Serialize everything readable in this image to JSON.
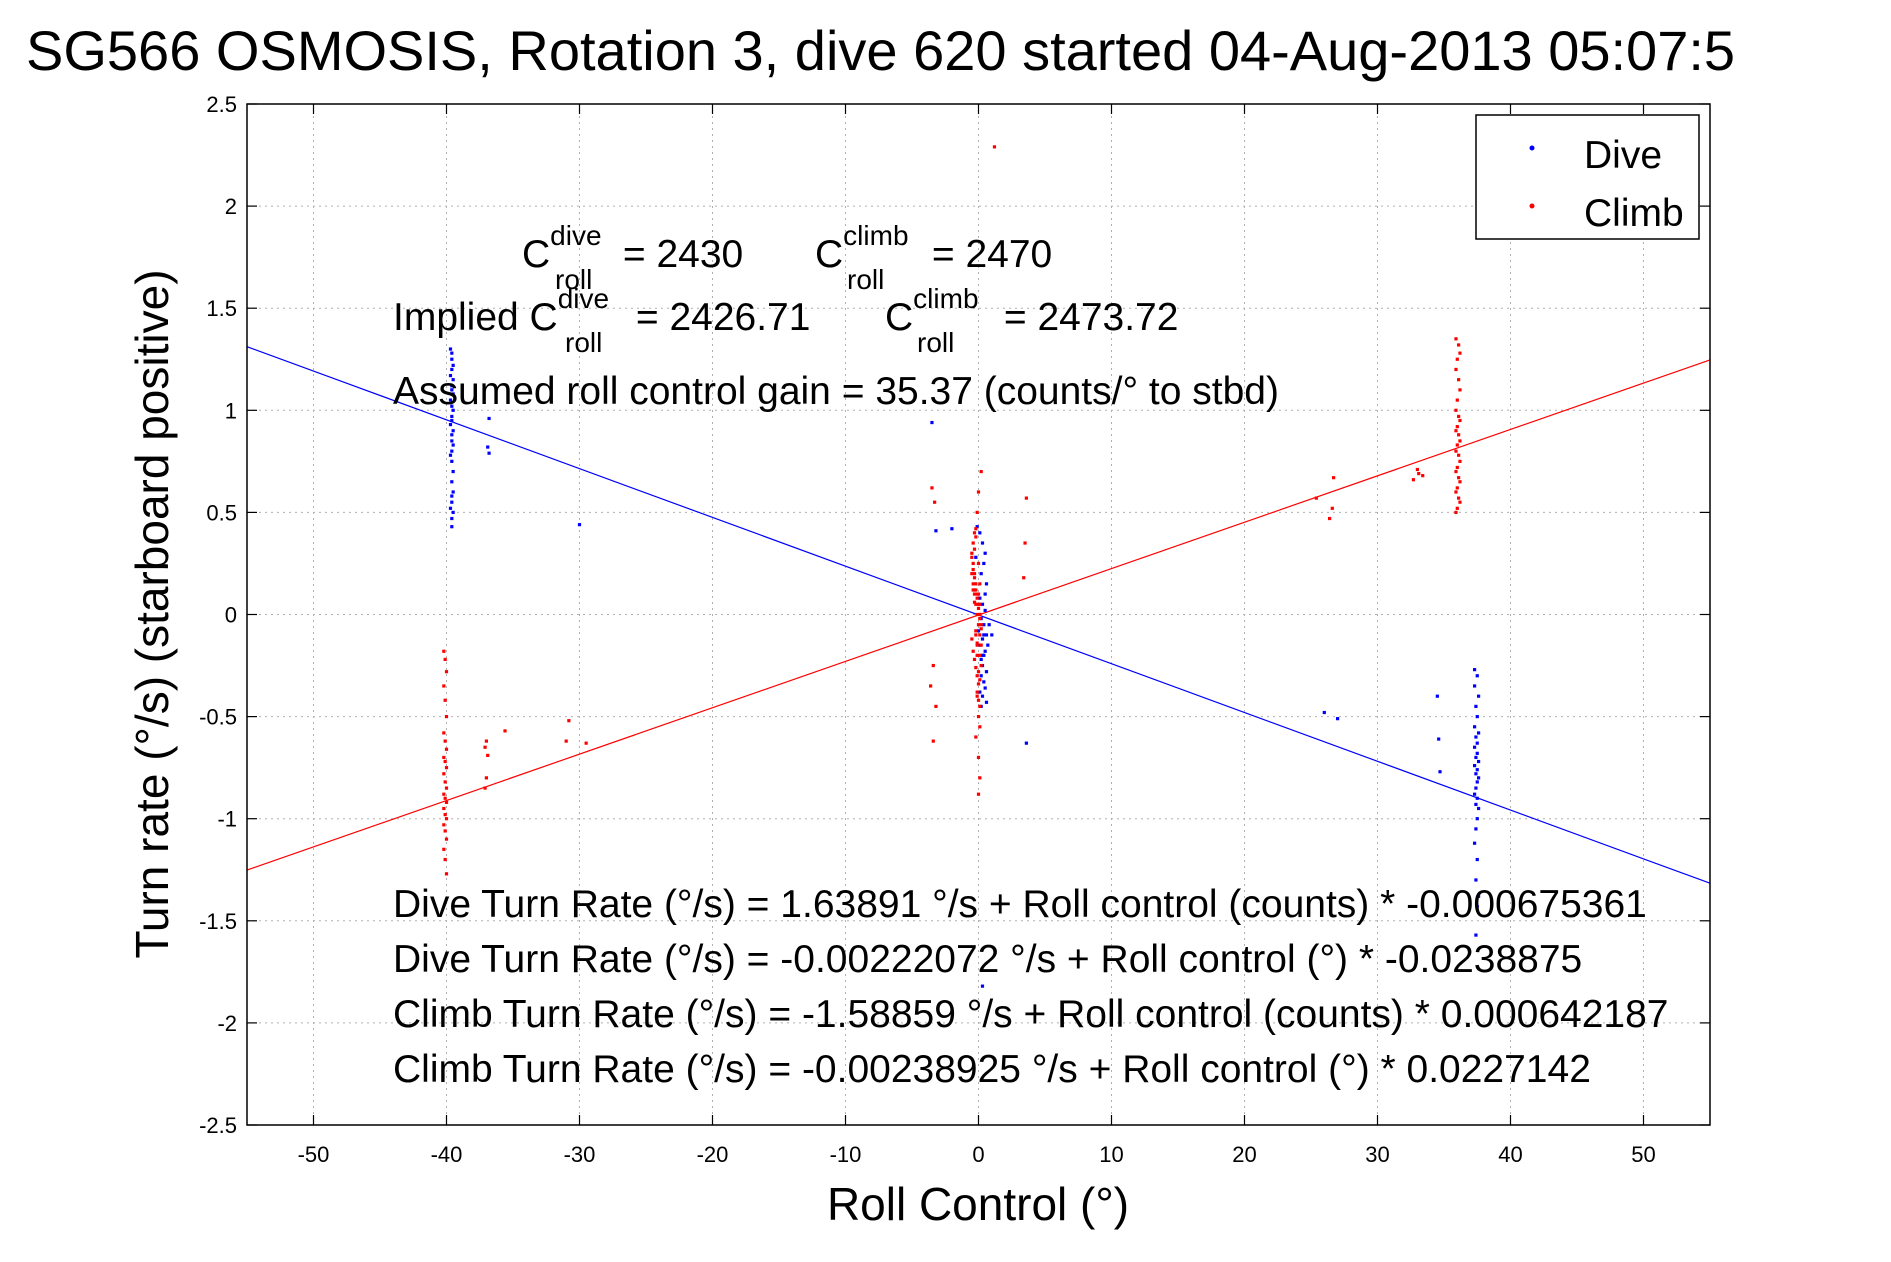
{
  "chart_data": {
    "type": "scatter",
    "title": "SG566 OSMOSIS, Rotation 3, dive 620 started 04-Aug-2013 05:07:5",
    "xlabel": "Roll Control (°)",
    "ylabel": "Turn rate (°/s)  (starboard positive)",
    "xlim": [
      -55,
      55
    ],
    "ylim": [
      -2.5,
      2.5
    ],
    "xticks": [
      -50,
      -40,
      -30,
      -20,
      -10,
      0,
      10,
      20,
      30,
      40,
      50
    ],
    "yticks": [
      -2.5,
      -2,
      -1.5,
      -1,
      -0.5,
      0,
      0.5,
      1,
      1.5,
      2,
      2.5
    ],
    "xtick_labels": [
      "-50",
      "-40",
      "-30",
      "-20",
      "-10",
      "0",
      "10",
      "20",
      "30",
      "40",
      "50"
    ],
    "ytick_labels": [
      "-2.5",
      "-2",
      "-1.5",
      "-1",
      "-0.5",
      "0",
      "0.5",
      "1",
      "1.5",
      "2",
      "2.5"
    ],
    "grid": true,
    "legend_position": "top-right",
    "series": [
      {
        "name": "Dive",
        "color": "#0000ff",
        "marker": "dot",
        "x": [
          -39.7,
          -39.6,
          -39.6,
          -39.5,
          -39.6,
          -39.7,
          -39.5,
          -39.6,
          -39.6,
          -39.5,
          -39.7,
          -39.6,
          -39.5,
          -39.6,
          -39.6,
          -39.7,
          -39.5,
          -39.6,
          -39.6,
          -39.5,
          -39.6,
          -39.7,
          -39.6,
          -39.5,
          -39.6,
          -39.5,
          -39.6,
          -39.6,
          -39.7,
          -39.5,
          -39.6,
          -39.6,
          -36.8,
          -36.9,
          -36.8,
          -30.0,
          -3.5,
          -3.2,
          -2.0,
          -0.1,
          0.1,
          0.3,
          0.5,
          -0.2,
          0.4,
          0.2,
          0.6,
          -0.3,
          0.1,
          0.3,
          0.5,
          0.2,
          0.4,
          0.0,
          0.6,
          0.3,
          0.1,
          0.5,
          0.4,
          0.2,
          0.3,
          0.6,
          0.2,
          0.4,
          0.5,
          0.1,
          0.3,
          0.6,
          0.2,
          0.5,
          0.4,
          0.3,
          0.8,
          1.0,
          0.7,
          0.3,
          3.6,
          26.0,
          27.0,
          34.5,
          34.6,
          34.7,
          37.3,
          37.5,
          37.3,
          37.6,
          37.4,
          37.5,
          37.3,
          37.6,
          37.4,
          37.5,
          37.3,
          37.5,
          37.4,
          37.6,
          37.3,
          37.5,
          37.4,
          37.6,
          37.5,
          37.4,
          37.3,
          37.5,
          37.4,
          37.6,
          37.5,
          37.4,
          37.3,
          37.5,
          37.4,
          37.6,
          37.5,
          37.4
        ],
        "y": [
          1.3,
          1.28,
          1.25,
          1.22,
          1.2,
          1.17,
          1.15,
          1.12,
          1.1,
          1.08,
          1.05,
          1.02,
          1.0,
          0.97,
          0.95,
          0.93,
          0.9,
          0.88,
          0.85,
          0.83,
          0.8,
          0.78,
          0.75,
          0.7,
          0.65,
          0.6,
          0.58,
          0.55,
          0.52,
          0.5,
          0.47,
          0.43,
          0.96,
          0.82,
          0.79,
          0.44,
          0.94,
          0.41,
          0.42,
          0.43,
          0.4,
          0.35,
          0.3,
          0.28,
          0.25,
          0.2,
          0.15,
          0.12,
          0.08,
          0.05,
          0.02,
          -0.02,
          -0.05,
          -0.08,
          -0.1,
          -0.12,
          -0.15,
          -0.18,
          -0.2,
          -0.22,
          -0.25,
          -0.28,
          -0.3,
          -0.33,
          -0.36,
          -0.38,
          -0.4,
          -0.43,
          -0.45,
          0.1,
          -0.1,
          -0.2,
          -0.05,
          -0.1,
          -0.15,
          -1.82,
          -0.63,
          -0.48,
          -0.51,
          -0.4,
          -0.61,
          -0.77,
          -0.27,
          -0.3,
          -0.35,
          -0.4,
          -0.45,
          -0.5,
          -0.55,
          -0.58,
          -0.6,
          -0.63,
          -0.65,
          -0.68,
          -0.7,
          -0.72,
          -0.74,
          -0.76,
          -0.78,
          -0.8,
          -0.82,
          -0.85,
          -0.88,
          -0.9,
          -0.93,
          -0.95,
          -1.0,
          -1.05,
          -1.12,
          -1.2,
          -1.3,
          -1.38,
          -1.43,
          -1.57
        ]
      },
      {
        "name": "Climb",
        "color": "#ff0000",
        "marker": "dot",
        "x": [
          -40.2,
          -40.1,
          -40.0,
          -40.2,
          -40.1,
          -40.0,
          -40.2,
          -40.1,
          -40.0,
          -40.2,
          -40.1,
          -40.0,
          -40.2,
          -40.1,
          -40.0,
          -40.2,
          -40.1,
          -40.0,
          -40.2,
          -40.1,
          -40.0,
          -40.2,
          -40.1,
          -40.0,
          -40.2,
          -40.1,
          -40.0,
          -37.0,
          -37.1,
          -36.9,
          -37.0,
          -37.1,
          -35.6,
          -31.0,
          -30.8,
          -29.5,
          -3.5,
          -3.3,
          -3.4,
          -3.6,
          -3.2,
          -3.4,
          -0.5,
          -0.4,
          -0.3,
          -0.2,
          -0.1,
          0.0,
          0.1,
          0.2,
          -0.5,
          -0.4,
          -0.3,
          -0.2,
          -0.1,
          0.0,
          0.1,
          0.2,
          -0.5,
          -0.4,
          -0.3,
          -0.2,
          -0.1,
          0.0,
          0.1,
          0.2,
          -0.5,
          -0.4,
          -0.3,
          -0.2,
          -0.1,
          0.0,
          0.1,
          0.2,
          -0.4,
          -0.3,
          -0.2,
          -0.1,
          0.0,
          0.1,
          -0.4,
          -0.3,
          -0.2,
          -0.1,
          0.0,
          0.1,
          -0.3,
          -0.2,
          -0.1,
          0.0,
          0.1,
          -0.2,
          0.0,
          0.1,
          0.0,
          -0.1,
          0.0,
          0.2,
          -0.2,
          0.1,
          -0.1,
          0.0,
          0.1,
          0.0,
          -0.1,
          0.1,
          3.6,
          3.5,
          3.4,
          25.4,
          26.7,
          26.4,
          26.6,
          32.7,
          33.1,
          33.4,
          33.0,
          35.9,
          36.1,
          36.2,
          36.0,
          35.9,
          36.1,
          36.2,
          36.0,
          35.9,
          36.1,
          36.2,
          36.0,
          35.9,
          36.1,
          36.2,
          36.0,
          35.9,
          36.1,
          36.2,
          36.0,
          35.9,
          36.1,
          36.2,
          36.0,
          35.9,
          36.1,
          36.2,
          36.0,
          35.9
        ],
        "y": [
          -0.18,
          -0.22,
          -0.28,
          -0.35,
          -0.42,
          -0.5,
          -0.58,
          -0.62,
          -0.66,
          -0.7,
          -0.72,
          -0.75,
          -0.78,
          -0.82,
          -0.85,
          -0.88,
          -0.9,
          -0.92,
          -0.95,
          -0.98,
          -1.0,
          -1.03,
          -1.06,
          -1.1,
          -1.15,
          -1.2,
          -1.27,
          -0.62,
          -0.65,
          -0.69,
          -0.8,
          -0.85,
          -0.57,
          -0.62,
          -0.52,
          -0.63,
          0.62,
          0.55,
          -0.25,
          -0.35,
          -0.45,
          -0.62,
          0.3,
          0.25,
          0.2,
          0.15,
          0.1,
          0.05,
          0.0,
          -0.05,
          0.28,
          0.22,
          0.18,
          0.12,
          0.08,
          0.03,
          -0.02,
          -0.07,
          0.2,
          0.15,
          0.1,
          0.05,
          0.0,
          -0.05,
          -0.1,
          -0.15,
          -0.12,
          -0.18,
          -0.22,
          -0.26,
          -0.3,
          -0.34,
          -0.2,
          -0.25,
          0.35,
          0.32,
          0.38,
          -0.38,
          -0.42,
          -0.45,
          0.12,
          0.06,
          -0.08,
          -0.14,
          -0.28,
          -0.32,
          0.4,
          0.42,
          -0.4,
          -0.5,
          -0.55,
          -0.6,
          -0.7,
          -0.8,
          -0.88,
          0.5,
          0.6,
          0.7,
          -0.1,
          0.15,
          -0.2,
          0.25,
          0.0,
          0.1,
          -0.15,
          0.05,
          0.57,
          0.35,
          0.18,
          0.57,
          0.67,
          0.47,
          0.52,
          0.66,
          0.69,
          0.68,
          0.71,
          1.35,
          1.32,
          1.28,
          1.25,
          1.2,
          1.15,
          1.1,
          1.05,
          1.0,
          0.97,
          0.95,
          0.92,
          0.9,
          0.88,
          0.85,
          0.83,
          0.8,
          0.78,
          0.75,
          0.72,
          0.7,
          0.67,
          0.65,
          0.62,
          0.6,
          0.57,
          0.55,
          0.52,
          0.5
        ],
        "extra": {
          "x": [
            1.2
          ],
          "y": [
            2.29
          ]
        }
      }
    ],
    "fit_lines": [
      {
        "name": "Dive fit",
        "color": "#0000ff",
        "intercept": -0.00222072,
        "slope": -0.0238875
      },
      {
        "name": "Climb fit",
        "color": "#ff0000",
        "intercept": -0.00238925,
        "slope": 0.0227142
      }
    ],
    "annotations": {
      "c_dive_label": "C",
      "c_dive_sup": "dive",
      "c_dive_sub": "roll",
      "c_dive_value": " = 2430",
      "c_climb_label": "C",
      "c_climb_sup": "climb",
      "c_climb_sub": "roll",
      "c_climb_value": " = 2470",
      "implied_prefix": "Implied C",
      "implied_dive_sup": "dive",
      "implied_dive_sub": "roll",
      "implied_dive_value": " = 2426.71",
      "implied_climb_label": "C",
      "implied_climb_sup": "climb",
      "implied_climb_sub": "roll",
      "implied_climb_value": " = 2473.72",
      "gain": "Assumed roll control gain = 35.37 (counts/° to stbd)",
      "eq1": "Dive Turn Rate (°/s) = 1.63891 °/s + Roll control (counts) * -0.000675361",
      "eq2": "Dive Turn Rate (°/s) = -0.00222072 °/s + Roll control (°) * -0.0238875",
      "eq3": "Climb Turn Rate (°/s) = -1.58859 °/s + Roll control (counts) * 0.000642187",
      "eq4": "Climb Turn Rate (°/s) = -0.00238925 °/s + Roll control (°) * 0.0227142"
    }
  }
}
